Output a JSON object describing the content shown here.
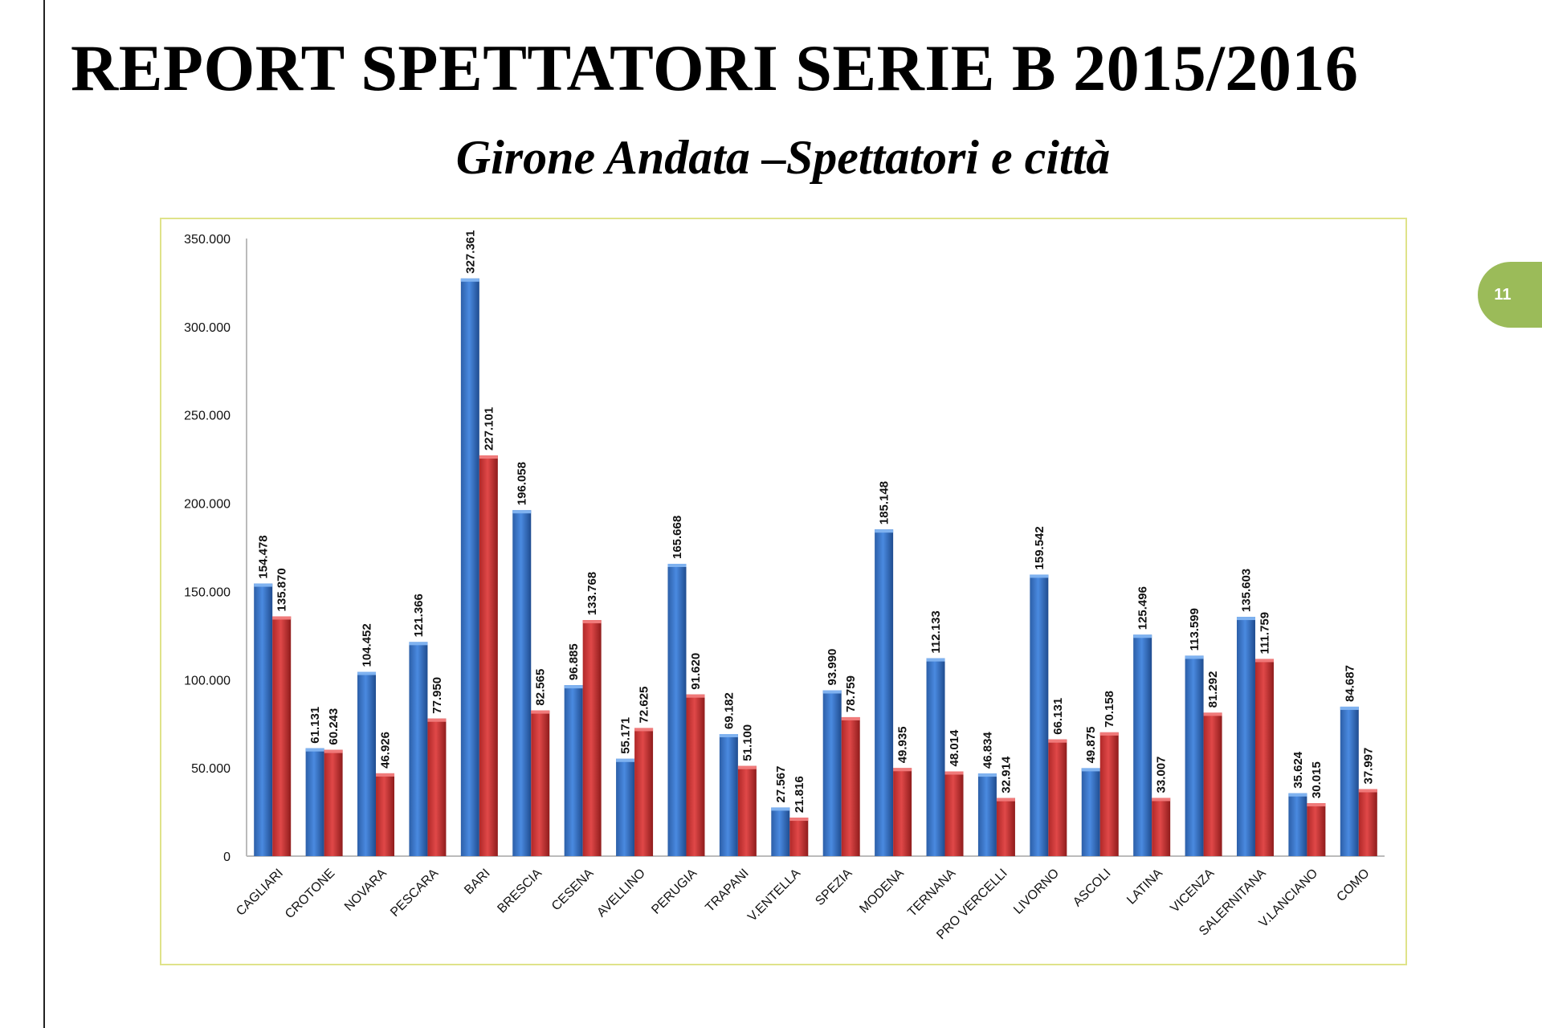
{
  "page": {
    "title": "REPORT SPETTATORI SERIE B 2015/2016",
    "subtitle": "Girone Andata –Spettatori e città",
    "page_number": "11"
  },
  "colors": {
    "series1": "#3a78c9",
    "series2": "#d23a3a",
    "badge": "#9bbb59",
    "frame": "#dfe38a"
  },
  "chart_data": {
    "type": "bar",
    "title": "Girone Andata –Spettatori e città",
    "xlabel": "",
    "ylabel": "",
    "ylim": [
      0,
      350000
    ],
    "yticks": [
      0,
      50000,
      100000,
      150000,
      200000,
      250000,
      300000,
      350000
    ],
    "ytick_labels": [
      "0",
      "50.000",
      "100.000",
      "150.000",
      "200.000",
      "250.000",
      "300.000",
      "350.000"
    ],
    "grid": false,
    "legend": "none",
    "categories": [
      "CAGLIARI",
      "CROTONE",
      "NOVARA",
      "PESCARA",
      "BARI",
      "BRESCIA",
      "CESENA",
      "AVELLINO",
      "PERUGIA",
      "TRAPANI",
      "V.ENTELLA",
      "SPEZIA",
      "MODENA",
      "TERNANA",
      "PRO VERCELLI",
      "LIVORNO",
      "ASCOLI",
      "LATINA",
      "VICENZA",
      "SALERNITANA",
      "V.LANCIANO",
      "COMO"
    ],
    "series": [
      {
        "name": "Spettatori",
        "values": [
          154478,
          61131,
          104452,
          121366,
          327361,
          196058,
          96885,
          55171,
          165668,
          69182,
          27567,
          93990,
          185148,
          112133,
          46834,
          159542,
          49875,
          125496,
          113599,
          135603,
          35624,
          84687
        ],
        "labels": [
          "154.478",
          "61.131",
          "104.452",
          "121.366",
          "327.361",
          "196.058",
          "96.885",
          "55.171",
          "165.668",
          "69.182",
          "27.567",
          "93.990",
          "185.148",
          "112.133",
          "46.834",
          "159.542",
          "49.875",
          "125.496",
          "113.599",
          "135.603",
          "35.624",
          "84.687"
        ]
      },
      {
        "name": "Città",
        "values": [
          135870,
          60243,
          46926,
          77950,
          227101,
          82565,
          133768,
          72625,
          91620,
          51100,
          21816,
          78759,
          49935,
          48014,
          32914,
          66131,
          70158,
          33007,
          81292,
          111759,
          30015,
          37997
        ],
        "labels": [
          "135.870",
          "60.243",
          "46.926",
          "77.950",
          "227.101",
          "82.565",
          "133.768",
          "72.625",
          "91.620",
          "51.100",
          "21.816",
          "78.759",
          "49.935",
          "48.014",
          "32.914",
          "66.131",
          "70.158",
          "33.007",
          "81.292",
          "111.759",
          "30.015",
          "37.997"
        ]
      }
    ]
  }
}
